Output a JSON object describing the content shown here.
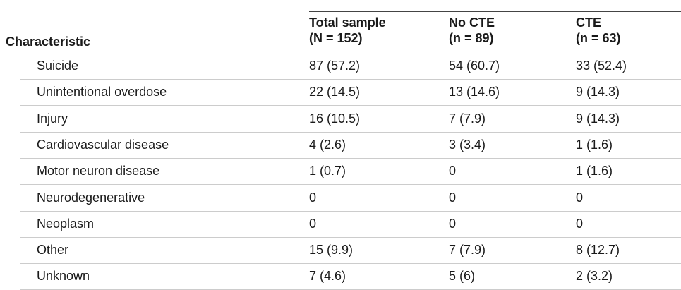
{
  "header": {
    "characteristic": "Characteristic",
    "columns": [
      [
        "Total sample",
        "(N = 152)"
      ],
      [
        "No CTE",
        "(n = 89)"
      ],
      [
        "CTE",
        "(n = 63)"
      ]
    ]
  },
  "table": {
    "rows": [
      [
        "Suicide",
        "87 (57.2)",
        "54 (60.7)",
        "33 (52.4)"
      ],
      [
        "Unintentional overdose",
        "22 (14.5)",
        "13 (14.6)",
        "9 (14.3)"
      ],
      [
        "Injury",
        "16 (10.5)",
        "7 (7.9)",
        "9 (14.3)"
      ],
      [
        "Cardiovascular disease",
        "4 (2.6)",
        "3 (3.4)",
        "1 (1.6)"
      ],
      [
        "Motor neuron disease",
        "1 (0.7)",
        "0",
        "1 (1.6)"
      ],
      [
        "Neurodegenerative",
        "0",
        "0",
        "0"
      ],
      [
        "Neoplasm",
        "0",
        "0",
        "0"
      ],
      [
        "Other",
        "15 (9.9)",
        "7 (7.9)",
        "8 (12.7)"
      ],
      [
        "Unknown",
        "7 (4.6)",
        "5 (6)",
        "2 (3.2)"
      ]
    ]
  }
}
